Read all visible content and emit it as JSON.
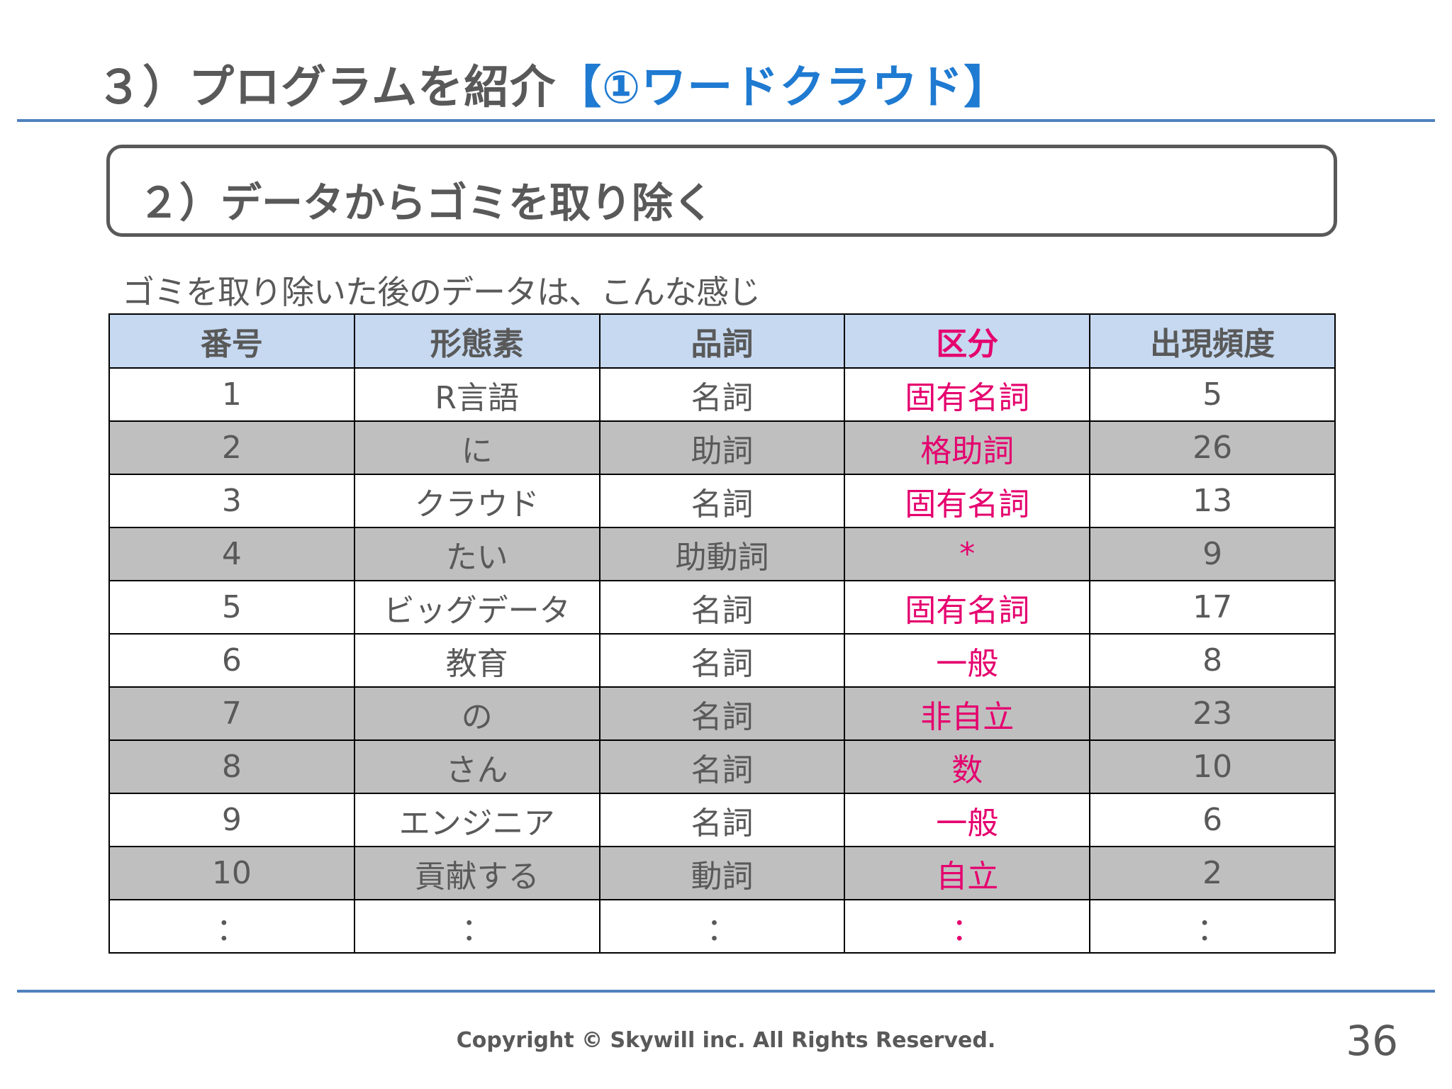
{
  "header": {
    "title": "３）プログラムを紹介",
    "title_accent": "【①ワードクラウド】"
  },
  "section": {
    "title": "２）データからゴミを取り除く"
  },
  "caption": "ゴミを取り除いた後のデータは、こんな感じ",
  "table": {
    "headers": [
      "番号",
      "形態素",
      "品詞",
      "区分",
      "出現頻度"
    ],
    "rows": [
      [
        "1",
        "R言語",
        "名詞",
        "固有名詞",
        "5"
      ],
      [
        "2",
        "に",
        "助詞",
        "格助詞",
        "26"
      ],
      [
        "3",
        "クラウド",
        "名詞",
        "固有名詞",
        "13"
      ],
      [
        "4",
        "たい",
        "助動詞",
        "*",
        "9"
      ],
      [
        "5",
        "ビッグデータ",
        "名詞",
        "固有名詞",
        "17"
      ],
      [
        "6",
        "教育",
        "名詞",
        "一般",
        "8"
      ],
      [
        "7",
        "の",
        "名詞",
        "非自立",
        "23"
      ],
      [
        "8",
        "さん",
        "名詞",
        "数",
        "10"
      ],
      [
        "9",
        "エンジニア",
        "名詞",
        "一般",
        "6"
      ],
      [
        "10",
        "貢献する",
        "動詞",
        "自立",
        "2"
      ],
      [
        "：",
        "：",
        "：",
        "：",
        "："
      ]
    ]
  },
  "colors": {
    "accent_blue": "#1f7ad1",
    "highlight_pink": "#e5006e",
    "header_fill": "#c6d9f1",
    "row_shade": "#bfbfbf",
    "rule": "#4f81bd"
  },
  "footer": {
    "copyright": "Copyright © Skywill inc. All Rights Reserved.",
    "page_number": "36"
  }
}
